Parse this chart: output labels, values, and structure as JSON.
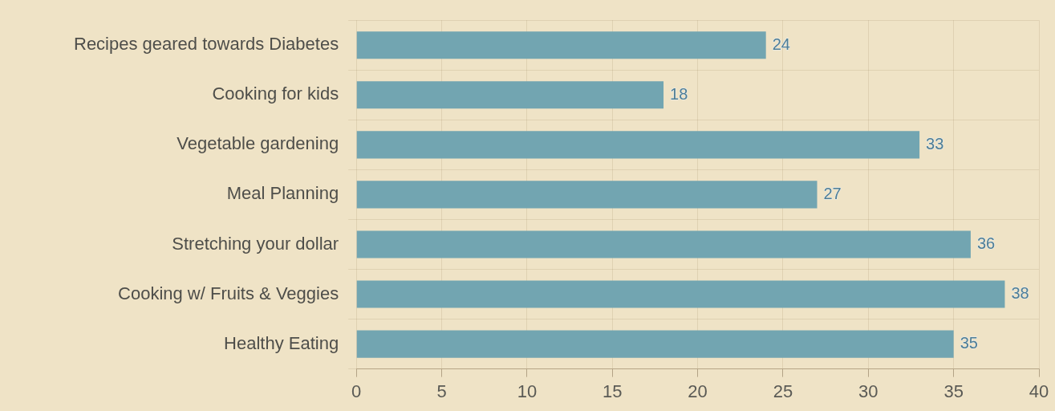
{
  "chart_data": {
    "type": "bar",
    "orientation": "horizontal",
    "categories": [
      "Recipes geared towards Diabetes",
      "Cooking for kids",
      "Vegetable gardening",
      "Meal Planning",
      "Stretching your dollar",
      "Cooking w/ Fruits & Veggies",
      "Healthy Eating"
    ],
    "values": [
      24,
      18,
      33,
      27,
      36,
      38,
      35
    ],
    "color": "#72a5b1",
    "xlim": [
      0,
      40
    ],
    "xticks": [
      0,
      5,
      10,
      15,
      20,
      25,
      30,
      35,
      40
    ],
    "grid": true,
    "data_labels": true
  }
}
